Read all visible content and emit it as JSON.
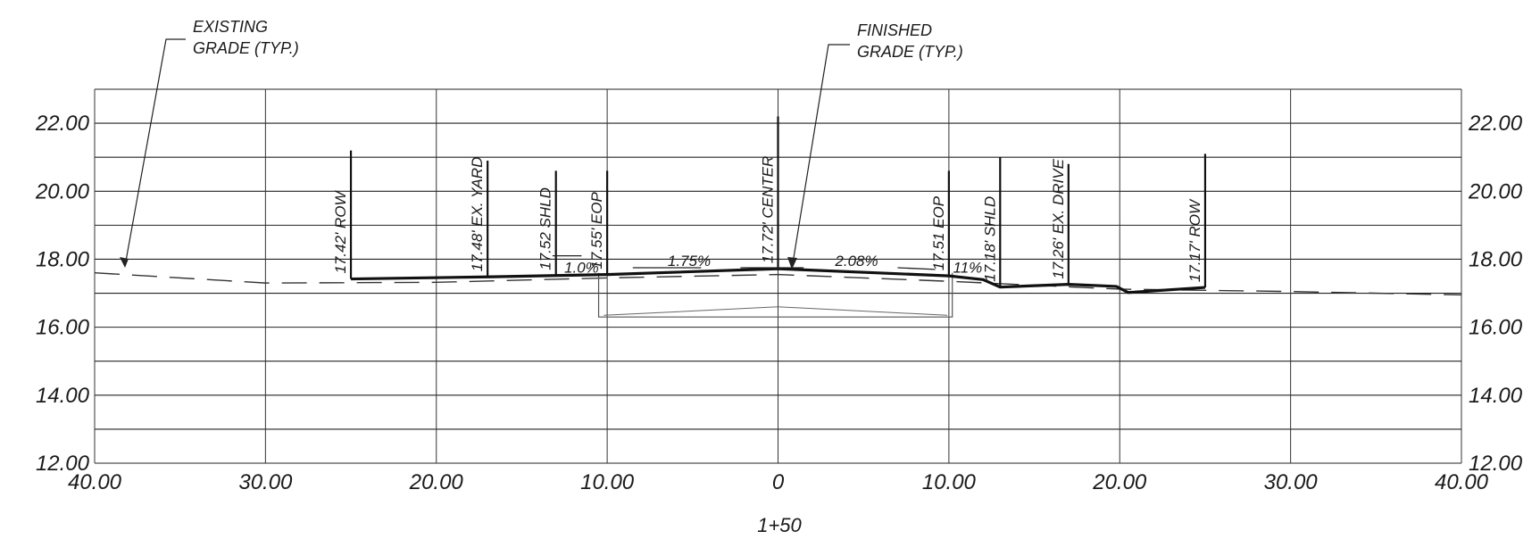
{
  "notes": {
    "existing_grade": [
      "EXISTING",
      "GRADE (TYP.)"
    ],
    "finished_grade": [
      "FINISHED",
      "GRADE (TYP.)"
    ]
  },
  "station": "1+50",
  "y_ticks": [
    "22.00",
    "20.00",
    "18.00",
    "16.00",
    "14.00",
    "12.00"
  ],
  "x_ticks": [
    "40.00",
    "30.00",
    "20.00",
    "10.00",
    "0",
    "10.00",
    "20.00",
    "30.00",
    "40.00"
  ],
  "callouts": [
    {
      "offset": -25,
      "text": "17.42' ROW",
      "top": 21.2
    },
    {
      "offset": -17,
      "text": "17.48' EX. YARD",
      "top": 20.9
    },
    {
      "offset": -13,
      "text": "17.52  SHLD",
      "top": 20.6
    },
    {
      "offset": -10,
      "text": "17.55' EOP",
      "top": 20.6
    },
    {
      "offset": 0,
      "text": "17.72'  CENTER",
      "top": 22.2
    },
    {
      "offset": 10,
      "text": "17.51  EOP",
      "top": 20.6
    },
    {
      "offset": 13,
      "text": "17.18' SHLD",
      "top": 21.0
    },
    {
      "offset": 17,
      "text": "17.26' EX. DRIVE",
      "top": 20.8
    },
    {
      "offset": 25,
      "text": "17.17' ROW",
      "top": 21.1
    }
  ],
  "slopes": [
    {
      "text": "1.0%",
      "x": -11.5,
      "y": 17.6
    },
    {
      "text": "1.75%",
      "x": -5.2,
      "y": 17.8
    },
    {
      "text": "2.08%",
      "x": 4.6,
      "y": 17.8
    },
    {
      "text": "11%",
      "x": 11.1,
      "y": 17.6
    }
  ],
  "finished_grade": [
    [
      -25,
      17.42
    ],
    [
      -17,
      17.48
    ],
    [
      -13,
      17.52
    ],
    [
      -10,
      17.55
    ],
    [
      0,
      17.72
    ],
    [
      10,
      17.51
    ],
    [
      12,
      17.4
    ],
    [
      13,
      17.18
    ],
    [
      17,
      17.26
    ],
    [
      19.8,
      17.2
    ],
    [
      20.5,
      17.02
    ],
    [
      25,
      17.17
    ]
  ],
  "existing_grade": [
    [
      -40,
      17.6
    ],
    [
      -30,
      17.3
    ],
    [
      -20,
      17.32
    ],
    [
      -10,
      17.45
    ],
    [
      0,
      17.55
    ],
    [
      10,
      17.35
    ],
    [
      20,
      17.12
    ],
    [
      30,
      17.05
    ],
    [
      40,
      16.95
    ]
  ],
  "pavement_box": {
    "x1": -10.5,
    "x2": 10.2,
    "y_bottom": 16.3
  }
}
